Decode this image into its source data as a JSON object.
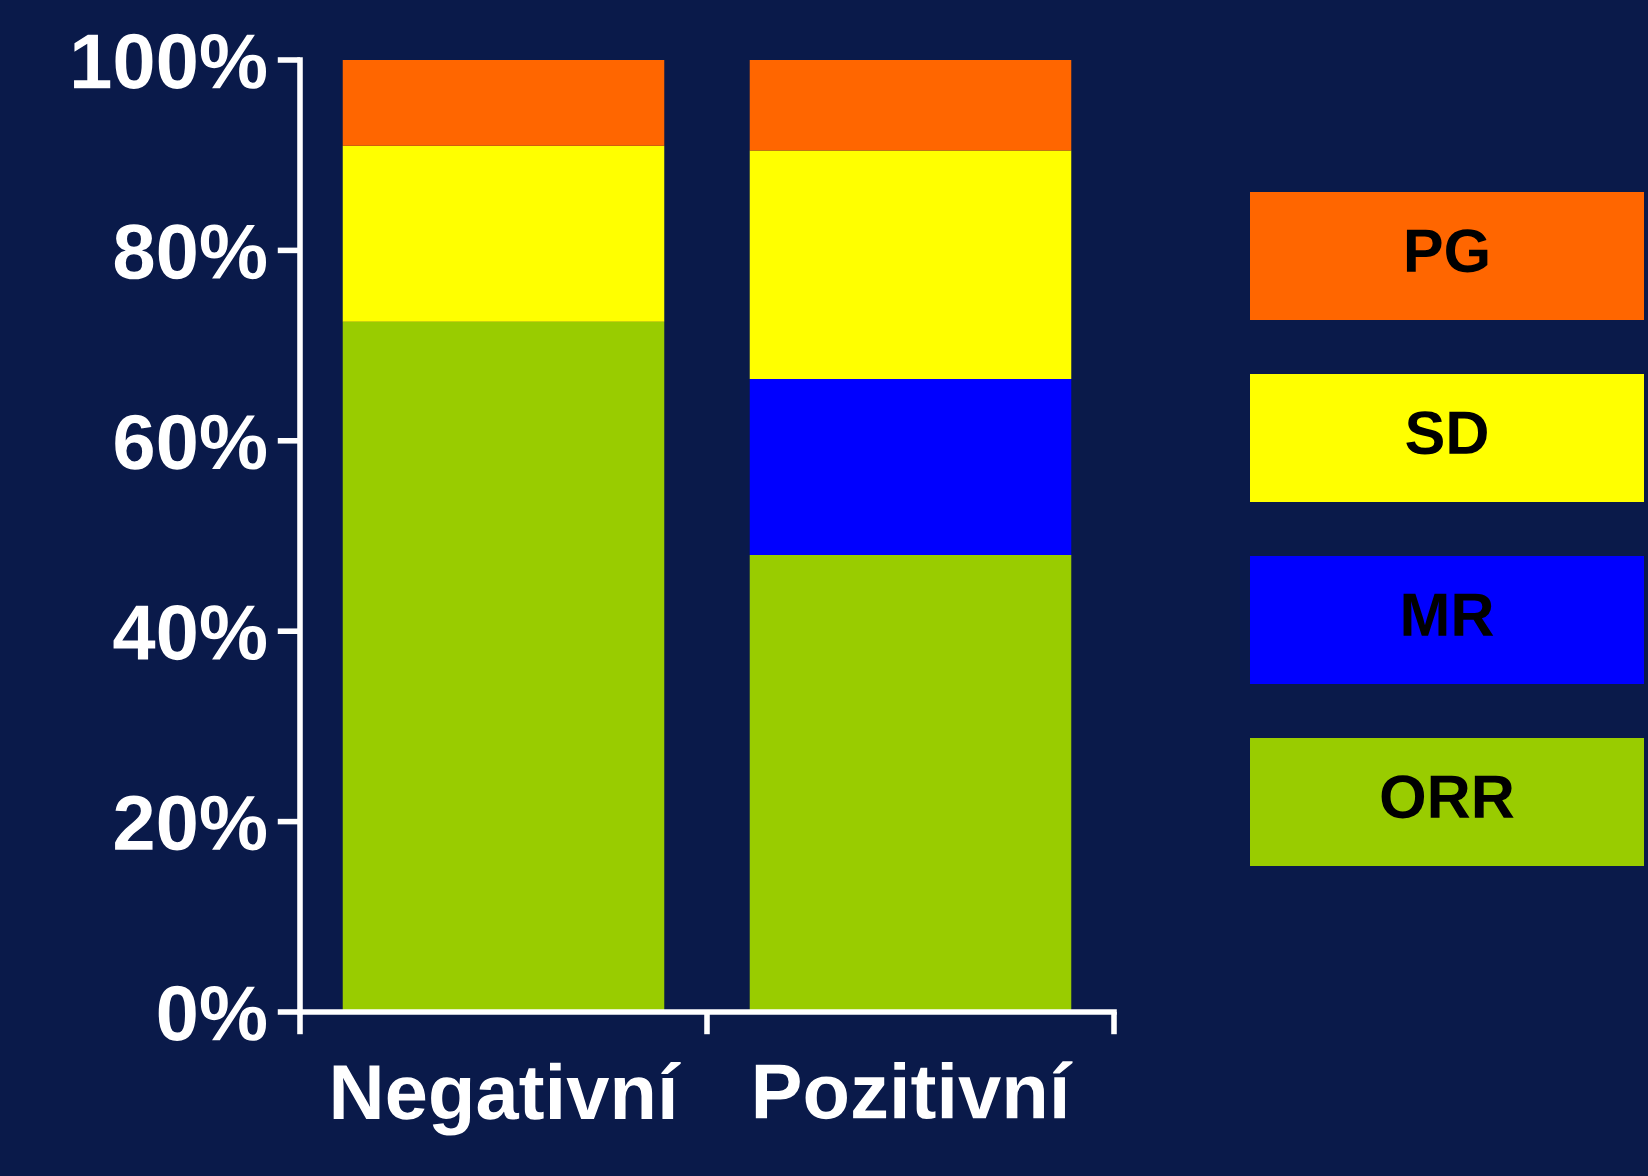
{
  "chart_data": {
    "type": "bar",
    "stacked": true,
    "categories": [
      "Negativní",
      "Pozitivní"
    ],
    "series": [
      {
        "name": "ORR",
        "color": "#99cc00",
        "values": [
          72.5,
          48
        ]
      },
      {
        "name": "MR",
        "color": "#0000ff",
        "values": [
          0,
          18.5
        ]
      },
      {
        "name": "SD",
        "color": "#ffff00",
        "values": [
          18.5,
          24
        ]
      },
      {
        "name": "PG",
        "color": "#ff6600",
        "values": [
          9,
          9.5
        ]
      }
    ],
    "ylim": [
      0,
      100
    ],
    "yticks": [
      {
        "value": 0,
        "label": "0%"
      },
      {
        "value": 20,
        "label": "20%"
      },
      {
        "value": 40,
        "label": "40%"
      },
      {
        "value": 60,
        "label": "60%"
      },
      {
        "value": 80,
        "label": "80%"
      },
      {
        "value": 100,
        "label": "100%"
      }
    ],
    "grid": false,
    "legend": "right"
  }
}
